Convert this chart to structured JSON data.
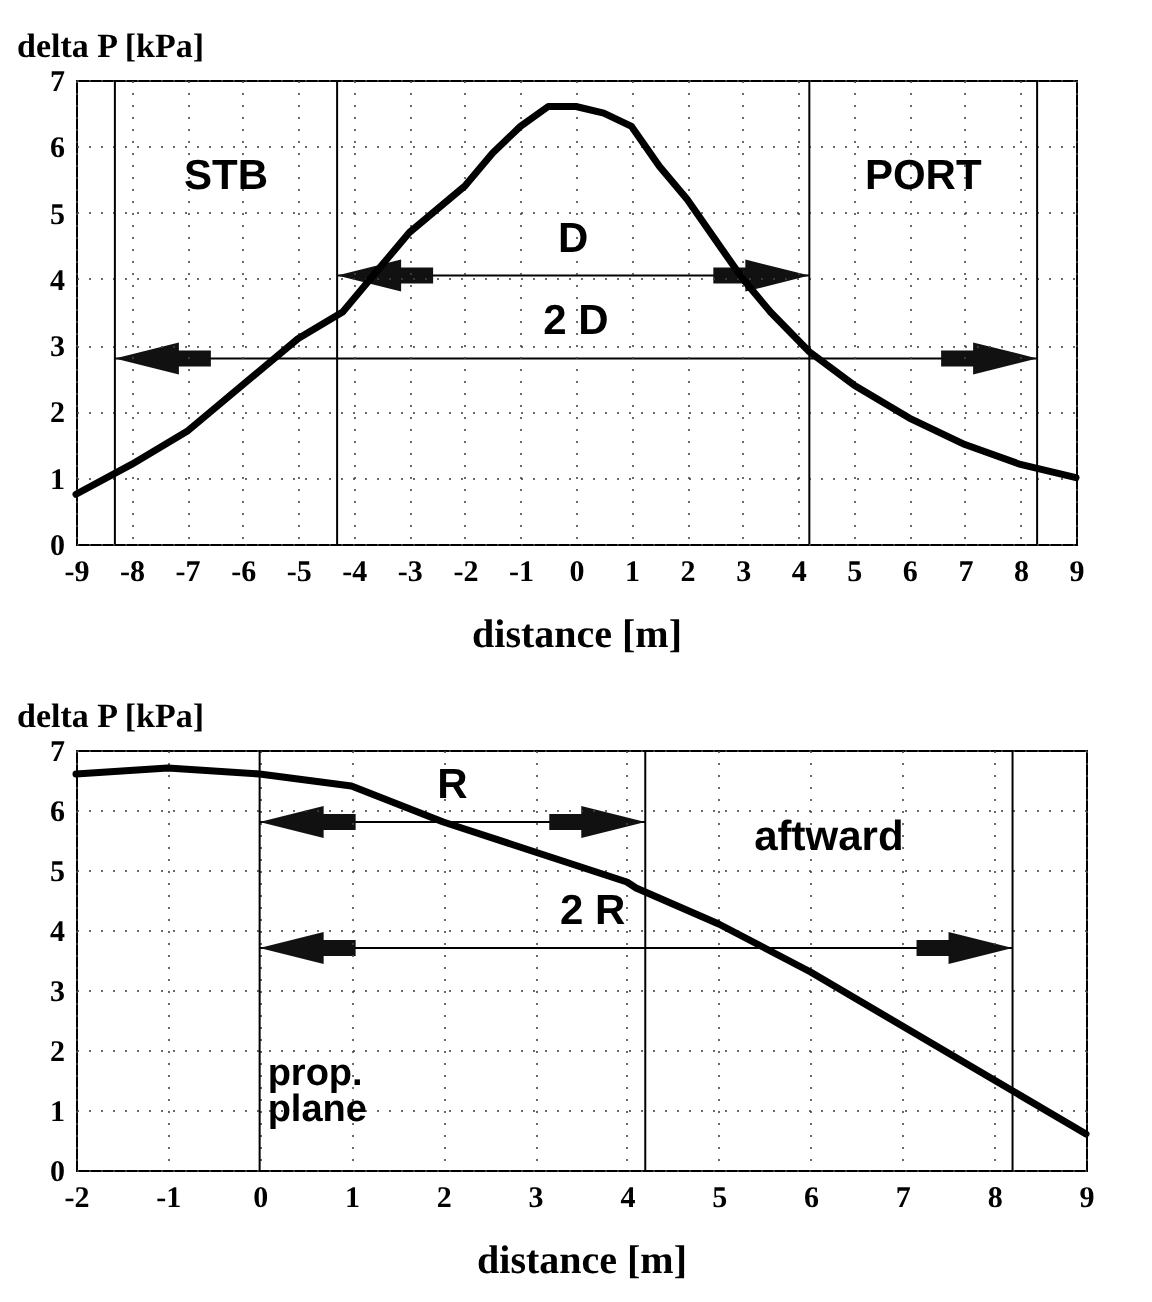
{
  "chart_data": [
    {
      "type": "line",
      "xlabel": "distance [m]",
      "ylabel": "delta P [kPa]",
      "x": [
        -9,
        -8,
        -7,
        -6,
        -5,
        -4.2,
        -4,
        -3.5,
        -3,
        -2,
        -1.5,
        -1,
        -0.5,
        0,
        0.5,
        1,
        1.5,
        2,
        3,
        3.5,
        4.2,
        5,
        6,
        7,
        8,
        9
      ],
      "series": [
        {
          "color": "#000000",
          "values": [
            0.75,
            1.2,
            1.7,
            2.4,
            3.1,
            3.5,
            3.7,
            4.2,
            4.7,
            5.4,
            5.9,
            6.3,
            6.6,
            6.6,
            6.5,
            6.3,
            5.7,
            5.2,
            4.0,
            3.5,
            2.9,
            2.4,
            1.9,
            1.5,
            1.2,
            1.0
          ]
        }
      ],
      "xlim": [
        -9,
        9
      ],
      "xticks": [
        -9,
        -8,
        -7,
        -6,
        -5,
        -4,
        -3,
        -2,
        -1,
        0,
        1,
        2,
        3,
        4,
        5,
        6,
        7,
        8,
        9
      ],
      "ylim": [
        0,
        7
      ],
      "yticks": [
        0,
        1,
        2,
        3,
        4,
        5,
        6,
        7
      ],
      "grid": true,
      "ref_lines": [
        {
          "axis": "x",
          "value": -8.3
        },
        {
          "axis": "x",
          "value": -4.3
        },
        {
          "axis": "x",
          "value": 4.2
        },
        {
          "axis": "x",
          "value": 8.3
        },
        {
          "axis": "y",
          "value": 4.05,
          "label": "D"
        },
        {
          "axis": "y",
          "value": 2.8,
          "label": "2 D"
        }
      ],
      "annotations": [
        "STB",
        "PORT"
      ]
    },
    {
      "type": "line",
      "xlabel": "distance [m]",
      "ylabel": "delta P [kPa]",
      "x": [
        -2,
        -1,
        0,
        1,
        2,
        3,
        4,
        4.1,
        5,
        6,
        7,
        8,
        9
      ],
      "series": [
        {
          "color": "#000000",
          "values": [
            6.6,
            6.7,
            6.6,
            6.4,
            5.8,
            5.3,
            4.8,
            4.7,
            4.1,
            3.3,
            2.4,
            1.5,
            0.6
          ]
        }
      ],
      "xlim": [
        -2,
        9
      ],
      "xticks": [
        -2,
        -1,
        0,
        1,
        2,
        3,
        4,
        5,
        6,
        7,
        8,
        9
      ],
      "ylim": [
        0,
        7
      ],
      "yticks": [
        0,
        1,
        2,
        3,
        4,
        5,
        6,
        7
      ],
      "grid": true,
      "ref_lines": [
        {
          "axis": "x",
          "value": 0,
          "label": "prop. plane"
        },
        {
          "axis": "x",
          "value": 4.2
        },
        {
          "axis": "x",
          "value": 8.2
        },
        {
          "axis": "y",
          "value": 5.8,
          "label": "R"
        },
        {
          "axis": "y",
          "value": 3.7,
          "label": "2 R"
        }
      ],
      "annotations": [
        "aftward"
      ]
    }
  ]
}
